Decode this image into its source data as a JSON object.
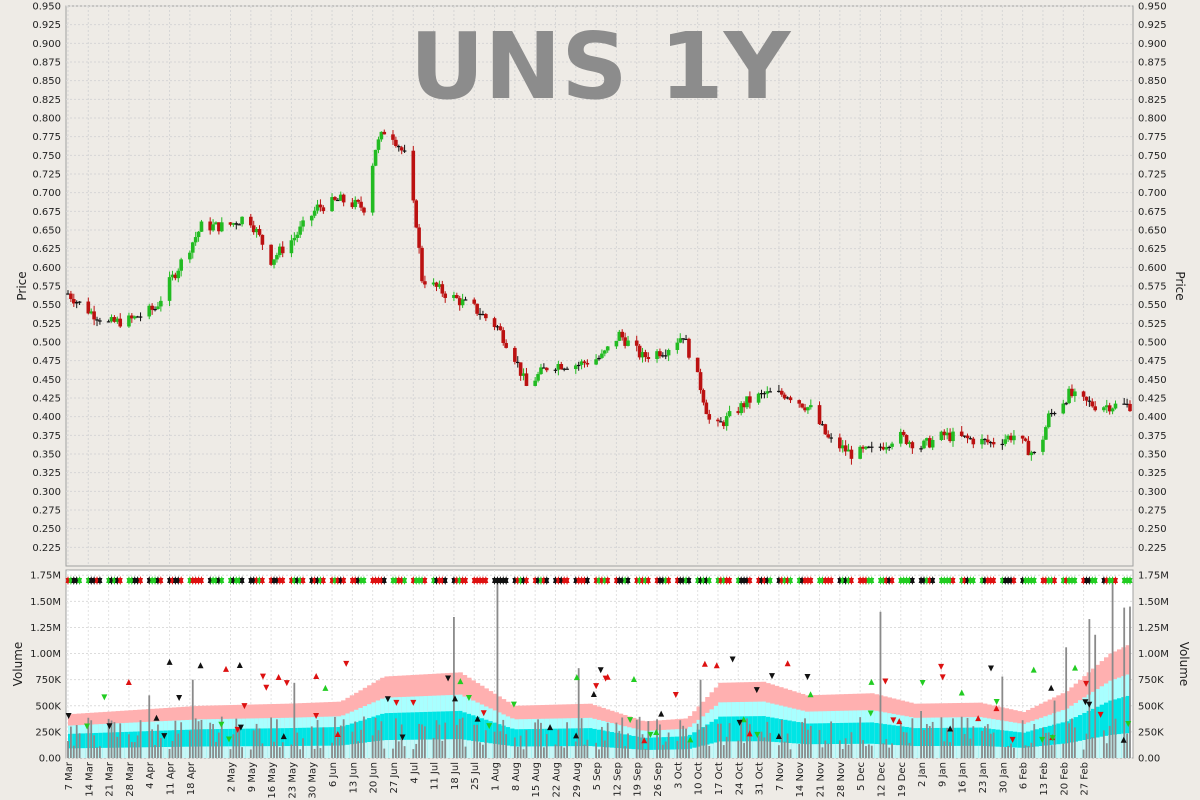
{
  "chart_data": [
    {
      "type": "ohlc",
      "title": "UNS 1Y",
      "ylabel": "Price",
      "ylim": [
        0.2,
        0.95
      ],
      "yticks": [
        0.225,
        0.25,
        0.275,
        0.3,
        0.325,
        0.35,
        0.375,
        0.4,
        0.425,
        0.45,
        0.475,
        0.5,
        0.525,
        0.55,
        0.575,
        0.6,
        0.625,
        0.65,
        0.675,
        0.7,
        0.725,
        0.75,
        0.775,
        0.8,
        0.825,
        0.85,
        0.875,
        0.9,
        0.925,
        0.95
      ],
      "grid": true,
      "colors": {
        "up": "#22bb22",
        "down": "#bb1111",
        "flat": "#111111"
      },
      "anchors": [
        {
          "d": 0,
          "p": 0.565
        },
        {
          "d": 6,
          "p": 0.545
        },
        {
          "d": 14,
          "p": 0.525
        },
        {
          "d": 22,
          "p": 0.53
        },
        {
          "d": 30,
          "p": 0.545
        },
        {
          "d": 38,
          "p": 0.6
        },
        {
          "d": 46,
          "p": 0.655
        },
        {
          "d": 55,
          "p": 0.655
        },
        {
          "d": 62,
          "p": 0.67
        },
        {
          "d": 70,
          "p": 0.61
        },
        {
          "d": 78,
          "p": 0.64
        },
        {
          "d": 86,
          "p": 0.68
        },
        {
          "d": 94,
          "p": 0.69
        },
        {
          "d": 102,
          "p": 0.68
        },
        {
          "d": 106,
          "p": 0.76
        },
        {
          "d": 110,
          "p": 0.79
        },
        {
          "d": 116,
          "p": 0.75
        },
        {
          "d": 120,
          "p": 0.66
        },
        {
          "d": 122,
          "p": 0.585
        },
        {
          "d": 130,
          "p": 0.565
        },
        {
          "d": 140,
          "p": 0.545
        },
        {
          "d": 148,
          "p": 0.52
        },
        {
          "d": 154,
          "p": 0.48
        },
        {
          "d": 158,
          "p": 0.44
        },
        {
          "d": 166,
          "p": 0.47
        },
        {
          "d": 176,
          "p": 0.47
        },
        {
          "d": 184,
          "p": 0.48
        },
        {
          "d": 190,
          "p": 0.51
        },
        {
          "d": 198,
          "p": 0.48
        },
        {
          "d": 206,
          "p": 0.49
        },
        {
          "d": 212,
          "p": 0.51
        },
        {
          "d": 218,
          "p": 0.44
        },
        {
          "d": 222,
          "p": 0.38
        },
        {
          "d": 228,
          "p": 0.4
        },
        {
          "d": 234,
          "p": 0.42
        },
        {
          "d": 240,
          "p": 0.43
        },
        {
          "d": 248,
          "p": 0.43
        },
        {
          "d": 256,
          "p": 0.41
        },
        {
          "d": 262,
          "p": 0.37
        },
        {
          "d": 270,
          "p": 0.35
        },
        {
          "d": 278,
          "p": 0.355
        },
        {
          "d": 286,
          "p": 0.375
        },
        {
          "d": 294,
          "p": 0.36
        },
        {
          "d": 302,
          "p": 0.375
        },
        {
          "d": 310,
          "p": 0.37
        },
        {
          "d": 318,
          "p": 0.365
        },
        {
          "d": 326,
          "p": 0.375
        },
        {
          "d": 334,
          "p": 0.345
        },
        {
          "d": 338,
          "p": 0.4
        },
        {
          "d": 345,
          "p": 0.43
        },
        {
          "d": 350,
          "p": 0.42
        },
        {
          "d": 354,
          "p": 0.415
        }
      ]
    },
    {
      "type": "bar",
      "ylabel": "Volume",
      "ylim": [
        0,
        1800000
      ],
      "yticks": [
        0,
        250000,
        500000,
        750000,
        1000000,
        1250000,
        1500000,
        1750000
      ],
      "ytick_labels": [
        "0.00",
        "250K",
        "500K",
        "750K",
        "1.00M",
        "1.25M",
        "1.50M",
        "1.75M"
      ],
      "grid": true,
      "band_colors": {
        "outer": "#ffb0b0",
        "mid": "#a8ffff",
        "inner": "#00e5e5",
        "bar": "#8a8a8a"
      },
      "spikes": [
        {
          "d": 12,
          "v": 470000
        },
        {
          "d": 28,
          "v": 600000
        },
        {
          "d": 43,
          "v": 750000
        },
        {
          "d": 78,
          "v": 720000
        },
        {
          "d": 103,
          "v": 400000
        },
        {
          "d": 133,
          "v": 1350000
        },
        {
          "d": 148,
          "v": 1680000
        },
        {
          "d": 176,
          "v": 860000
        },
        {
          "d": 201,
          "v": 380000
        },
        {
          "d": 218,
          "v": 750000
        },
        {
          "d": 236,
          "v": 340000
        },
        {
          "d": 254,
          "v": 380000
        },
        {
          "d": 280,
          "v": 1400000
        },
        {
          "d": 294,
          "v": 450000
        },
        {
          "d": 305,
          "v": 380000
        },
        {
          "d": 322,
          "v": 780000
        },
        {
          "d": 340,
          "v": 550000
        },
        {
          "d": 344,
          "v": 1060000
        },
        {
          "d": 352,
          "v": 1330000
        },
        {
          "d": 354,
          "v": 1180000
        },
        {
          "d": 360,
          "v": 1680000
        },
        {
          "d": 364,
          "v": 1440000
        },
        {
          "d": 366,
          "v": 1450000
        }
      ],
      "x_tick_labels": [
        "7 Mar",
        "14 Mar",
        "21 Mar",
        "28 Mar",
        "4 Apr",
        "11 Apr",
        "18 Apr",
        "2 May",
        "9 May",
        "16 May",
        "23 May",
        "30 May",
        "6 Jun",
        "13 Jun",
        "20 Jun",
        "27 Jun",
        "4 Jul",
        "11 Jul",
        "18 Jul",
        "25 Jul",
        "1 Aug",
        "8 Aug",
        "15 Aug",
        "22 Aug",
        "29 Aug",
        "5 Sep",
        "12 Sep",
        "19 Sep",
        "26 Sep",
        "3 Oct",
        "10 Oct",
        "17 Oct",
        "24 Oct",
        "31 Oct",
        "7 Nov",
        "14 Nov",
        "21 Nov",
        "28 Nov",
        "5 Dec",
        "12 Dec",
        "19 Dec",
        "2 Jan",
        "9 Jan",
        "16 Jan",
        "23 Jan",
        "30 Jan",
        "6 Feb",
        "13 Feb",
        "20 Feb",
        "27 Feb"
      ]
    }
  ]
}
